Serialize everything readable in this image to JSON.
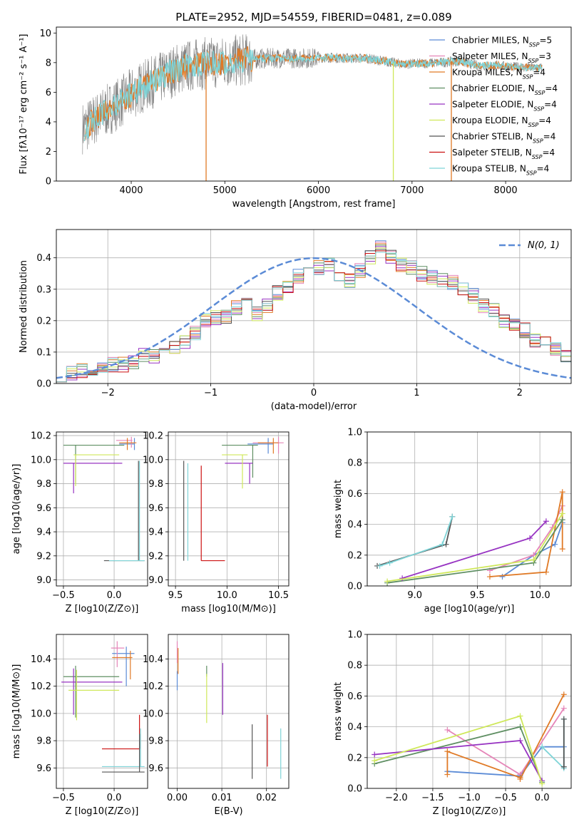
{
  "figure_title": "PLATE=2952, MJD=54559, FIBERID=0481, z=0.089",
  "colors": {
    "cm": "#5b8bd6",
    "sm": "#e585b8",
    "km": "#e07a26",
    "ce": "#5f8f63",
    "se": "#9733c2",
    "ke": "#cfe85a",
    "cs": "#555555",
    "ss": "#cc1111",
    "ks": "#7fd4d7",
    "gray": "#808080",
    "gaussian": "#5b8bd6"
  },
  "chart_data": [
    {
      "id": "spectrum",
      "type": "line",
      "title": "PLATE=2952, MJD=54559, FIBERID=0481, z=0.089",
      "xlabel": "wavelength [Angstrom, rest frame]",
      "ylabel": "Flux [fλ10⁻¹⁷ erg cm⁻² s⁻¹ A⁻¹]",
      "xlim": [
        3200,
        8700
      ],
      "ylim": [
        0,
        10.4
      ],
      "xticks": [
        "4000",
        "5000",
        "6000",
        "7000",
        "8000"
      ],
      "yticks": [
        "0",
        "2",
        "4",
        "6",
        "8",
        "10"
      ],
      "legend_position": "top-right",
      "legend": [
        "Chabrier MILES, N_SSP=5",
        "Salpeter MILES, N_SSP=3",
        "Kroupa MILES, N_SSP=4",
        "Chabrier ELODIE, N_SSP=4",
        "Salpeter ELODIE, N_SSP=4",
        "Kroupa ELODIE, N_SSP=4",
        "Chabrier STELIB, N_SSP=4",
        "Salpeter STELIB, N_SSP=4",
        "Kroupa STELIB, N_SSP=4"
      ],
      "continuum": {
        "x": [
          3500,
          3700,
          3900,
          4100,
          4300,
          4500,
          4700,
          4900,
          5100,
          5300,
          5500,
          5700,
          5900,
          6100,
          6300,
          6500,
          6700,
          6900,
          7100,
          7300,
          7500,
          7700,
          7900,
          8100,
          8300,
          8500
        ],
        "y": [
          3.6,
          4.6,
          5.4,
          6.3,
          6.9,
          7.6,
          7.9,
          8.0,
          8.1,
          8.25,
          8.3,
          8.3,
          8.3,
          8.35,
          8.3,
          8.3,
          8.1,
          7.9,
          7.95,
          8.0,
          8.1,
          7.8,
          7.8,
          7.7,
          7.65,
          7.6
        ]
      },
      "dips": [
        {
          "x": 4800,
          "y": 0,
          "color": "km"
        },
        {
          "x": 6800,
          "y": 0,
          "color": "ke"
        },
        {
          "x": 7420,
          "y": 0,
          "color": "km"
        }
      ]
    },
    {
      "id": "residuals",
      "type": "bar",
      "xlabel": "(data-model)/error",
      "ylabel": "Normed distribution",
      "xlim": [
        -2.5,
        2.5
      ],
      "ylim": [
        0,
        0.49
      ],
      "xticks": [
        "−2",
        "−1",
        "0",
        "1",
        "2"
      ],
      "yticks": [
        "0.0",
        "0.1",
        "0.2",
        "0.3",
        "0.4"
      ],
      "legend_label": "N(0, 1)",
      "legend_position": "top-right",
      "bin_edges_from": -2.5,
      "bin_width": 0.1,
      "hist": [
        0.02,
        0.03,
        0.04,
        0.05,
        0.05,
        0.06,
        0.06,
        0.07,
        0.09,
        0.09,
        0.1,
        0.11,
        0.13,
        0.16,
        0.2,
        0.21,
        0.21,
        0.24,
        0.26,
        0.22,
        0.25,
        0.29,
        0.31,
        0.34,
        0.37,
        0.37,
        0.38,
        0.35,
        0.33,
        0.36,
        0.4,
        0.43,
        0.4,
        0.38,
        0.37,
        0.35,
        0.34,
        0.33,
        0.32,
        0.3,
        0.28,
        0.25,
        0.23,
        0.2,
        0.19,
        0.17,
        0.14,
        0.13,
        0.11,
        0.09
      ]
    },
    {
      "id": "age-vs-Z",
      "type": "scatter",
      "xlabel": "Z [log10(Z/Z⊙)]",
      "ylabel": "age  [log10(age/yr)]",
      "xlim": [
        -0.57,
        0.33
      ],
      "ylim": [
        8.95,
        10.23
      ],
      "xticks": [
        "−0.5",
        "0.0"
      ],
      "xtick_values": [
        -0.5,
        0.0
      ],
      "yticks": [
        "9.0",
        "9.2",
        "9.4",
        "9.6",
        "9.8",
        "10.0",
        "10.2"
      ]
    },
    {
      "id": "age-vs-mass",
      "type": "scatter",
      "xlabel": "mass [log10(M/M⊙)]",
      "ylabel": "",
      "xlim": [
        9.43,
        10.6
      ],
      "ylim": [
        8.95,
        10.23
      ],
      "xticks": [
        "9.5",
        "10.0",
        "10.5"
      ],
      "xtick_values": [
        9.5,
        10.0,
        10.5
      ],
      "yticks": [
        "9.0",
        "9.2",
        "9.4",
        "9.6",
        "9.8",
        "10.0",
        "10.2"
      ]
    },
    {
      "id": "weight-vs-age",
      "type": "line",
      "xlabel": "age  [log10(age/yr)]",
      "ylabel": "mass weight",
      "xlim": [
        8.62,
        10.25
      ],
      "ylim": [
        0,
        1.0
      ],
      "xticks": [
        "9.0",
        "9.5",
        "10.0"
      ],
      "xtick_values": [
        9.0,
        9.5,
        10.0
      ],
      "yticks": [
        "0.0",
        "0.2",
        "0.4",
        "0.6",
        "0.8",
        "1.0"
      ],
      "series": [
        {
          "color": "cm",
          "x": [
            9.7,
            9.95,
            10.12,
            10.18
          ],
          "y": [
            0.06,
            0.2,
            0.27,
            0.41
          ]
        },
        {
          "color": "sm",
          "x": [
            9.6,
            9.95,
            10.1,
            10.18
          ],
          "y": [
            0.1,
            0.2,
            0.38,
            0.52
          ]
        },
        {
          "color": "km",
          "x": [
            9.6,
            10.05,
            10.18,
            10.18
          ],
          "y": [
            0.06,
            0.09,
            0.61,
            0.24
          ]
        },
        {
          "color": "ce",
          "x": [
            8.78,
            9.95,
            10.18
          ],
          "y": [
            0.02,
            0.15,
            0.43
          ]
        },
        {
          "color": "se",
          "x": [
            8.9,
            9.92,
            10.05
          ],
          "y": [
            0.05,
            0.31,
            0.42
          ]
        },
        {
          "color": "ke",
          "x": [
            8.78,
            9.95,
            10.18
          ],
          "y": [
            0.03,
            0.17,
            0.47
          ]
        },
        {
          "color": "cs",
          "x": [
            8.7,
            9.25,
            9.3
          ],
          "y": [
            0.13,
            0.27,
            0.45
          ]
        },
        {
          "color": "ks",
          "x": [
            8.72,
            8.8,
            9.22,
            9.3
          ],
          "y": [
            0.13,
            0.15,
            0.27,
            0.45
          ]
        }
      ]
    },
    {
      "id": "mass-vs-Z",
      "type": "scatter",
      "xlabel": "Z [log10(Z/Z⊙)]",
      "ylabel": "mass [log10(M/M⊙)]",
      "xlim": [
        -0.57,
        0.33
      ],
      "ylim": [
        9.45,
        10.58
      ],
      "xticks": [
        "−0.5",
        "0.0"
      ],
      "xtick_values": [
        -0.5,
        0.0
      ],
      "yticks": [
        "9.6",
        "9.8",
        "10.0",
        "10.2",
        "10.4"
      ]
    },
    {
      "id": "mass-vs-EBV",
      "type": "scatter",
      "xlabel": "E(B-V)",
      "ylabel": "",
      "xlim": [
        -0.002,
        0.025
      ],
      "ylim": [
        9.45,
        10.58
      ],
      "xticks": [
        "0.00",
        "0.01",
        "0.02"
      ],
      "xtick_values": [
        0.0,
        0.01,
        0.02
      ],
      "yticks": [
        "9.6",
        "9.8",
        "10.0",
        "10.2",
        "10.4"
      ]
    },
    {
      "id": "weight-vs-Z",
      "type": "line",
      "xlabel": "Z [log10(Z/Z⊙)]",
      "ylabel": "mass weight",
      "xlim": [
        -2.4,
        0.4
      ],
      "ylim": [
        0,
        1.0
      ],
      "xticks": [
        "−2.0",
        "−1.5",
        "−1.0",
        "−0.5",
        "0.0"
      ],
      "xtick_values": [
        -2.0,
        -1.5,
        -1.0,
        -0.5,
        0.0
      ],
      "yticks": [
        "0.0",
        "0.2",
        "0.4",
        "0.6",
        "0.8",
        "1.0"
      ],
      "series": [
        {
          "color": "cm",
          "x": [
            -1.3,
            -0.3,
            0.0,
            0.3
          ],
          "y": [
            0.11,
            0.08,
            0.27,
            0.27
          ]
        },
        {
          "color": "sm",
          "x": [
            -1.3,
            -0.3,
            0.3
          ],
          "y": [
            0.38,
            0.09,
            0.52
          ]
        },
        {
          "color": "km",
          "x": [
            -1.3,
            -1.3,
            -0.3,
            -0.3,
            0.3
          ],
          "y": [
            0.09,
            0.24,
            0.07,
            0.06,
            0.61
          ]
        },
        {
          "color": "ce",
          "x": [
            -2.3,
            -0.3,
            0.0
          ],
          "y": [
            0.16,
            0.4,
            0.04
          ]
        },
        {
          "color": "se",
          "x": [
            -2.3,
            -0.3,
            0.0
          ],
          "y": [
            0.22,
            0.31,
            0.05
          ]
        },
        {
          "color": "ke",
          "x": [
            -2.3,
            -0.3,
            0.0
          ],
          "y": [
            0.18,
            0.47,
            0.03
          ]
        },
        {
          "color": "ks",
          "x": [
            0.0,
            0.3,
            0.3
          ],
          "y": [
            0.27,
            0.13,
            0.45
          ]
        },
        {
          "color": "cs",
          "x": [
            0.3,
            0.3
          ],
          "y": [
            0.14,
            0.45
          ]
        }
      ]
    }
  ]
}
